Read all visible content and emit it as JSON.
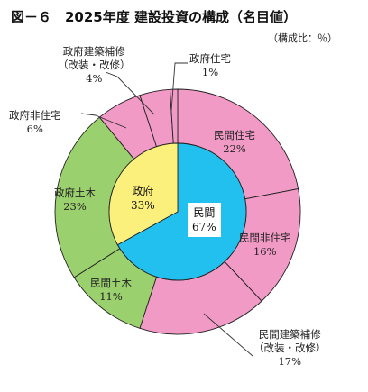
{
  "title": "図－６　2025年度 建設投資の構成（名目値）",
  "unit_note": "（構成比：％）",
  "chart_data": [
    {
      "type": "pie",
      "ring": "inner",
      "categories": [
        "民間",
        "政府"
      ],
      "values": [
        67,
        33
      ],
      "colors": [
        "#22c0ee",
        "#fcf07c"
      ]
    },
    {
      "type": "pie",
      "ring": "outer",
      "categories": [
        "民間住宅",
        "民間非住宅",
        "民間建築補修（改装・改修）",
        "民間土木",
        "政府土木",
        "政府非住宅",
        "政府建築補修（改装・改修）",
        "政府住宅"
      ],
      "values": [
        22,
        16,
        17,
        11,
        23,
        6,
        4,
        1
      ],
      "colors": [
        "#f29ac6",
        "#f29ac6",
        "#f29ac6",
        "#9bd06e",
        "#9bd06e",
        "#f29ac6",
        "#f29ac6",
        "#f29ac6"
      ]
    }
  ],
  "labels": {
    "inner_private": {
      "name": "民間",
      "value": "67%"
    },
    "inner_gov": {
      "name": "政府",
      "value": "33%"
    },
    "private_housing": {
      "name": "民間住宅",
      "value": "22%"
    },
    "private_nonres": {
      "name": "民間非住宅",
      "value": "16%"
    },
    "private_repair": {
      "line1": "民間建築補修",
      "line2": "（改装・改修）",
      "value": "17%"
    },
    "private_civil": {
      "name": "民間土木",
      "value": "11%"
    },
    "gov_civil": {
      "name": "政府土木",
      "value": "23%"
    },
    "gov_nonres": {
      "name": "政府非住宅",
      "value": "6%"
    },
    "gov_repair": {
      "line1": "政府建築補修",
      "line2": "（改装・改修）",
      "value": "4%"
    },
    "gov_housing": {
      "name": "政府住宅",
      "value": "1%"
    }
  }
}
